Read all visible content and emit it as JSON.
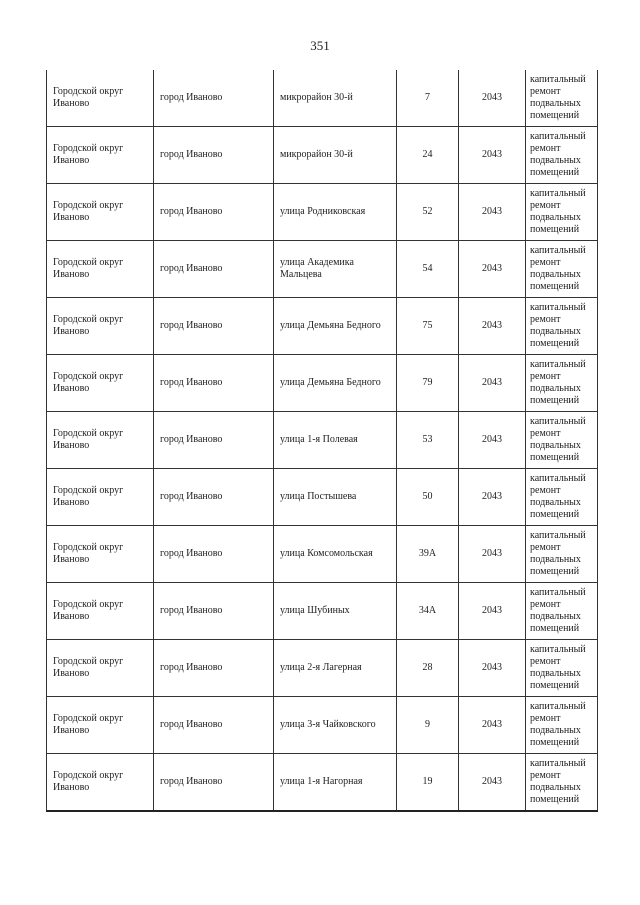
{
  "page_number": "351",
  "rows": [
    {
      "municipality": "Городской округ Иваново",
      "settlement": "город Иваново",
      "street": "микрорайон 30-й",
      "house": "7",
      "year": "2043",
      "work": "капитальный ремонт подвальных помещений"
    },
    {
      "municipality": "Городской округ Иваново",
      "settlement": "город Иваново",
      "street": "микрорайон 30-й",
      "house": "24",
      "year": "2043",
      "work": "капитальный ремонт подвальных помещений"
    },
    {
      "municipality": "Городской округ Иваново",
      "settlement": "город Иваново",
      "street": "улица Родниковская",
      "house": "52",
      "year": "2043",
      "work": "капитальный ремонт подвальных помещений"
    },
    {
      "municipality": "Городской округ Иваново",
      "settlement": "город Иваново",
      "street": "улица Академика Мальцева",
      "house": "54",
      "year": "2043",
      "work": "капитальный ремонт подвальных помещений"
    },
    {
      "municipality": "Городской округ Иваново",
      "settlement": "город Иваново",
      "street": "улица Демьяна Бедного",
      "house": "75",
      "year": "2043",
      "work": "капитальный ремонт подвальных помещений"
    },
    {
      "municipality": "Городской округ Иваново",
      "settlement": "город Иваново",
      "street": "улица Демьяна Бедного",
      "house": "79",
      "year": "2043",
      "work": "капитальный ремонт подвальных помещений"
    },
    {
      "municipality": "Городской округ Иваново",
      "settlement": "город Иваново",
      "street": "улица 1-я Полевая",
      "house": "53",
      "year": "2043",
      "work": "капитальный ремонт подвальных помещений"
    },
    {
      "municipality": "Городской округ Иваново",
      "settlement": "город Иваново",
      "street": "улица Постышева",
      "house": "50",
      "year": "2043",
      "work": "капитальный ремонт подвальных помещений"
    },
    {
      "municipality": "Городской округ Иваново",
      "settlement": "город Иваново",
      "street": "улица Комсомольская",
      "house": "39А",
      "year": "2043",
      "work": "капитальный ремонт подвальных помещений"
    },
    {
      "municipality": "Городской округ Иваново",
      "settlement": "город Иваново",
      "street": "улица Шубиных",
      "house": "34А",
      "year": "2043",
      "work": "капитальный ремонт подвальных помещений"
    },
    {
      "municipality": "Городской округ Иваново",
      "settlement": "город Иваново",
      "street": "улица 2-я Лагерная",
      "house": "28",
      "year": "2043",
      "work": "капитальный ремонт подвальных помещений"
    },
    {
      "municipality": "Городской округ Иваново",
      "settlement": "город Иваново",
      "street": "улица 3-я Чайковского",
      "house": "9",
      "year": "2043",
      "work": "капитальный ремонт подвальных помещений"
    },
    {
      "municipality": "Городской округ Иваново",
      "settlement": "город Иваново",
      "street": "улица 1-я Нагорная",
      "house": "19",
      "year": "2043",
      "work": "капитальный ремонт подвальных помещений"
    }
  ]
}
